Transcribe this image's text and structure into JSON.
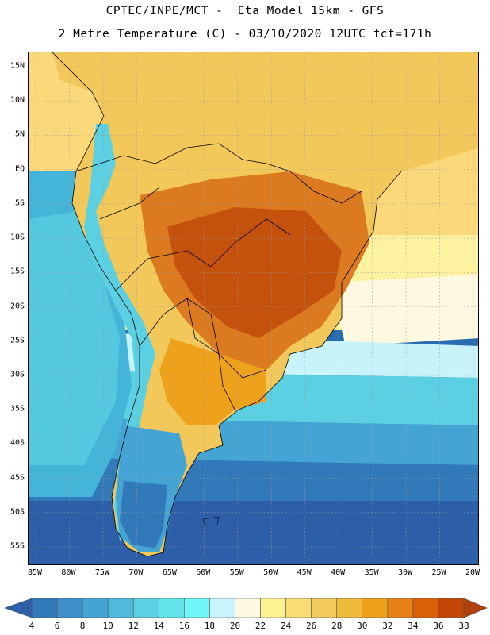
{
  "title": {
    "line1": "CPTEC/INPE/MCT -  Eta Model 15km - GFS",
    "line2": "2 Metre Temperature (C) - 03/10/2020 12UTC fct=171h"
  },
  "map": {
    "variable": "2 Metre Temperature",
    "unit": "C",
    "ocean_color": "#2a6cb0",
    "grid_color": "#9a9a9a"
  },
  "axes": {
    "latitude_labels": [
      "15N",
      "10N",
      "5N",
      "EQ",
      "5S",
      "10S",
      "15S",
      "20S",
      "25S",
      "30S",
      "35S",
      "40S",
      "45S",
      "50S",
      "55S"
    ],
    "latitude_values": [
      15,
      10,
      5,
      0,
      -5,
      -10,
      -15,
      -20,
      -25,
      -30,
      -35,
      -40,
      -45,
      -50,
      -55
    ],
    "longitude_labels": [
      "85W",
      "80W",
      "75W",
      "70W",
      "65W",
      "60W",
      "55W",
      "50W",
      "45W",
      "40W",
      "35W",
      "30W",
      "25W",
      "20W"
    ],
    "longitude_values": [
      -85,
      -80,
      -75,
      -70,
      -65,
      -60,
      -55,
      -50,
      -45,
      -40,
      -35,
      -30,
      -25,
      -20
    ]
  },
  "colorbar": {
    "labels": [
      "4",
      "6",
      "8",
      "10",
      "12",
      "14",
      "16",
      "18",
      "20",
      "22",
      "24",
      "26",
      "28",
      "30",
      "32",
      "34",
      "36",
      "38"
    ],
    "colors": [
      "#2c5fa8",
      "#3279ba",
      "#3c8fc8",
      "#44a4d4",
      "#4fbadc",
      "#5ad0e2",
      "#64e4ea",
      "#6ef6f8",
      "#c8f4fb",
      "#fdf8e2",
      "#fdf192",
      "#f8dd74",
      "#f3ca5a",
      "#efbb3c",
      "#eea21c",
      "#e98216",
      "#db600a",
      "#c34608",
      "#b33f0c"
    ]
  }
}
